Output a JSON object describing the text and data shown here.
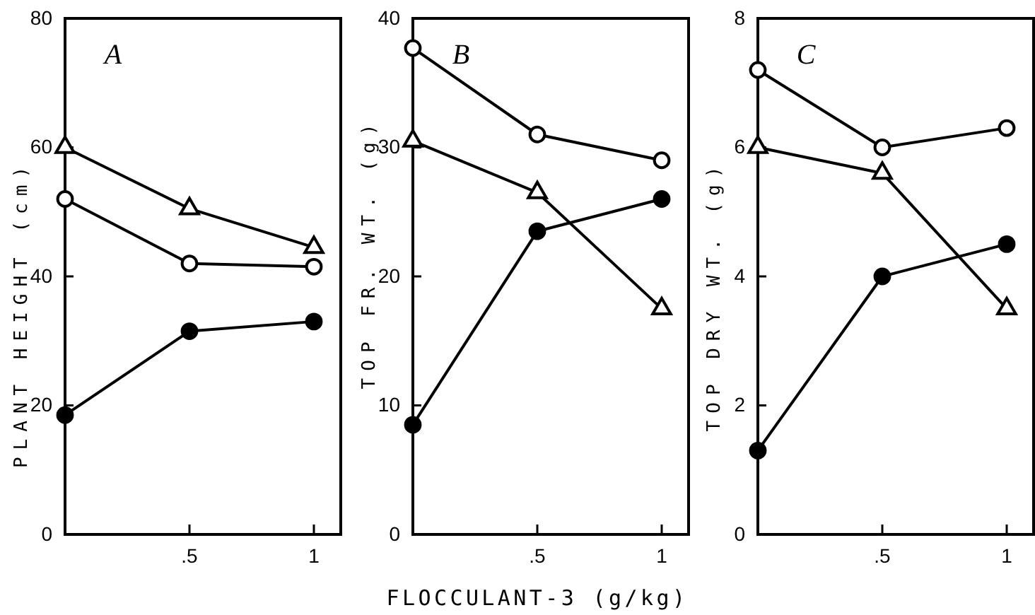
{
  "chart_data": [
    {
      "type": "line",
      "title": "A",
      "ylabel": "PLANT HEIGHT (cm)",
      "categories": [
        null,
        ".5",
        "1"
      ],
      "ylim": [
        0,
        80
      ],
      "yticks": [
        0,
        20,
        40,
        60,
        80
      ],
      "series": [
        {
          "color": "#000000",
          "marker": "triangle",
          "colors": [
            "#ffffff",
            "#ffffff",
            "#ffffff"
          ],
          "values": [
            60,
            50.5,
            44.5
          ]
        },
        {
          "color": "#000000",
          "marker": "circle",
          "colors": [
            "#ffffff",
            "#ffffff",
            "#ffffff"
          ],
          "values": [
            52,
            42,
            41.5
          ]
        },
        {
          "color": "#000000",
          "marker": "circle",
          "colors": [
            "#000000",
            "#000000",
            "#000000"
          ],
          "values": [
            18.5,
            31.5,
            33
          ]
        }
      ]
    },
    {
      "type": "line",
      "title": "B",
      "xlabel": "FLOCCULANT-3 (g/kg)",
      "ylabel": "TOP FR. WT. (g)",
      "categories": [
        null,
        ".5",
        "1"
      ],
      "ylim": [
        0,
        40
      ],
      "yticks": [
        0,
        10,
        20,
        30,
        40
      ],
      "series": [
        {
          "color": "#000000",
          "marker": "circle",
          "colors": [
            "#ffffff",
            "#ffffff",
            "#ffffff"
          ],
          "values": [
            37.7,
            31,
            29
          ]
        },
        {
          "color": "#000000",
          "marker": "triangle",
          "colors": [
            "#ffffff",
            "#ffffff",
            "#ffffff"
          ],
          "values": [
            30.5,
            26.5,
            17.5
          ]
        },
        {
          "color": "#000000",
          "marker": "circle",
          "colors": [
            "#000000",
            "#000000",
            "#000000"
          ],
          "values": [
            8.5,
            23.5,
            26
          ]
        }
      ]
    },
    {
      "type": "line",
      "title": "C",
      "ylabel": "TOP DRY WT. (g)",
      "categories": [
        null,
        ".5",
        "1"
      ],
      "ylim": [
        0,
        8
      ],
      "yticks": [
        0,
        2,
        4,
        6,
        8
      ],
      "series": [
        {
          "color": "#000000",
          "marker": "circle",
          "colors": [
            "#ffffff",
            "#ffffff",
            "#ffffff"
          ],
          "values": [
            7.2,
            6,
            6.3
          ]
        },
        {
          "color": "#000000",
          "marker": "triangle",
          "colors": [
            "#ffffff",
            "#ffffff",
            "#ffffff"
          ],
          "values": [
            6,
            5.6,
            3.5
          ]
        },
        {
          "color": "#000000",
          "marker": "circle",
          "colors": [
            "#000000",
            "#000000",
            "#000000"
          ],
          "values": [
            1.3,
            4,
            4.5
          ]
        }
      ]
    }
  ]
}
